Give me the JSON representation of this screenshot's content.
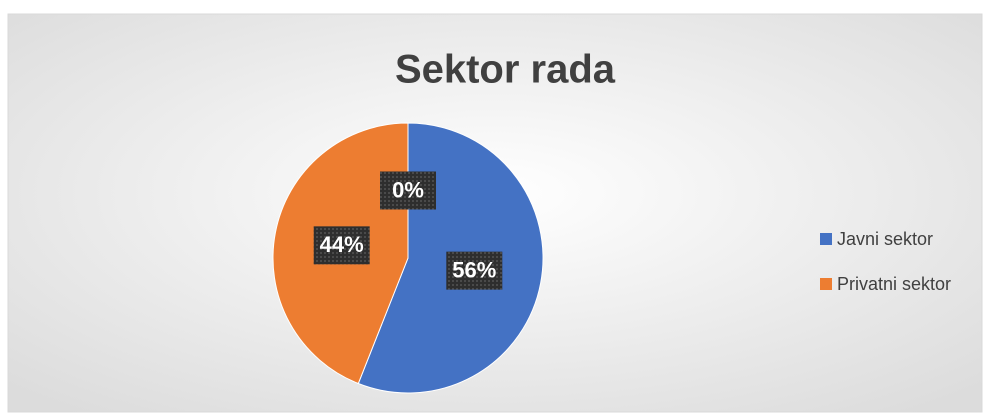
{
  "chart_data": {
    "type": "pie",
    "title": "Sektor rada",
    "categories": [
      "Javni sektor",
      "Privatni sektor",
      null
    ],
    "values": [
      56,
      44,
      0
    ],
    "value_labels": [
      "56%",
      "44%",
      "0%"
    ],
    "colors": [
      "#4472c4",
      "#ed7d31",
      "#a5a5a5"
    ],
    "legend": "right"
  }
}
